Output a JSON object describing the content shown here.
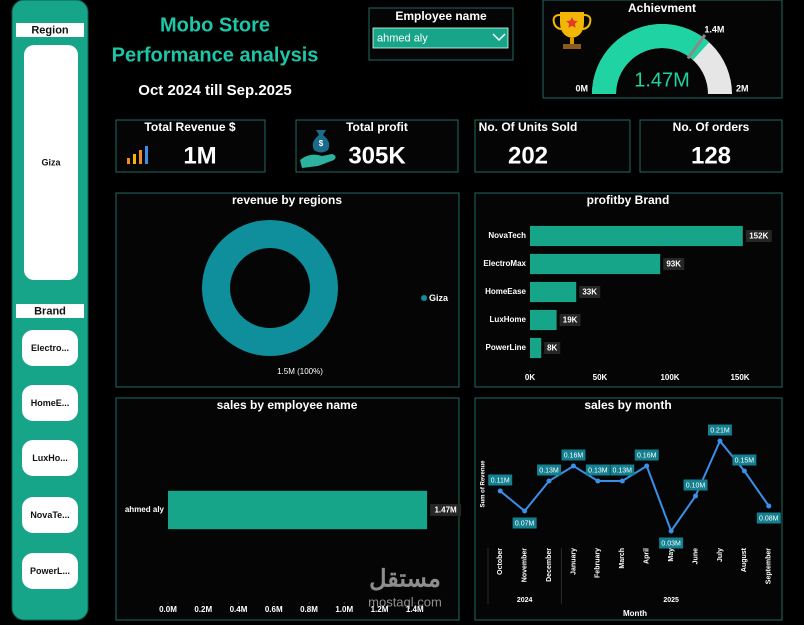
{
  "header": {
    "title": "Mobo Store",
    "subtitle": "Performance analysis",
    "period": "Oct 2024 till Sep.2025"
  },
  "sidebar": {
    "region_title": "Region",
    "region_items": [
      "Giza"
    ],
    "brand_title": "Brand",
    "brand_items": [
      "Electro...",
      "HomeE...",
      "LuxHo...",
      "NovaTe...",
      "PowerL..."
    ]
  },
  "employee_filter": {
    "label": "Employee name",
    "selected": "ahmed aly"
  },
  "kpis": [
    {
      "label": "Total Revenue $",
      "value": "1M"
    },
    {
      "label": "Total profit",
      "value": "305K"
    },
    {
      "label": "No. Of Units Sold",
      "value": 202
    },
    {
      "label": "No. Of orders",
      "value": 128
    }
  ],
  "chart_data": [
    {
      "type": "gauge",
      "title": "Achievment",
      "value": 1470000,
      "value_label": "1.47M",
      "target": 1400000,
      "target_label": "1.4M",
      "ylim": [
        0,
        2000000
      ],
      "yticks": [
        {
          "value": 0,
          "label": "0M"
        },
        {
          "value": 2000000,
          "label": "2M"
        }
      ],
      "color": "#1fd3a2",
      "track_color": "#e6e6e6"
    },
    {
      "type": "pie",
      "title": "revenue by regions",
      "categories": [
        "Giza"
      ],
      "values": [
        1500000
      ],
      "value_labels": [
        "1.5M (100%)"
      ],
      "colors": [
        "#0f8e9c"
      ],
      "hole": true,
      "legend": "right"
    },
    {
      "type": "bar",
      "orientation": "horizontal",
      "title": "profitby Brand",
      "categories": [
        "NovaTech",
        "ElectroMax",
        "HomeEase",
        "LuxHome",
        "PowerLine"
      ],
      "values": [
        152000,
        93000,
        33000,
        19000,
        8000
      ],
      "value_labels": [
        "152K",
        "93K",
        "33K",
        "19K",
        "8K"
      ],
      "color": "#17a589",
      "xlim": [
        0,
        155000
      ],
      "xticks": [
        {
          "value": 0,
          "label": "0K"
        },
        {
          "value": 50000,
          "label": "50K"
        },
        {
          "value": 100000,
          "label": "100K"
        },
        {
          "value": 150000,
          "label": "150K"
        }
      ]
    },
    {
      "type": "bar",
      "orientation": "horizontal",
      "title": "sales by employee name",
      "categories": [
        "ahmed aly"
      ],
      "values": [
        1470000
      ],
      "value_labels": [
        "1.47M"
      ],
      "color": "#17a589",
      "xlim": [
        0,
        1600000
      ],
      "xticks": [
        {
          "value": 0,
          "label": "0.0M"
        },
        {
          "value": 200000,
          "label": "0.2M"
        },
        {
          "value": 400000,
          "label": "0.4M"
        },
        {
          "value": 600000,
          "label": "0.6M"
        },
        {
          "value": 800000,
          "label": "0.8M"
        },
        {
          "value": 1000000,
          "label": "1.0M"
        },
        {
          "value": 1200000,
          "label": "1.2M"
        },
        {
          "value": 1400000,
          "label": "1.4M"
        }
      ]
    },
    {
      "type": "line",
      "title": "sales by month",
      "xlabel": "Month",
      "ylabel": "Sum of Revenue",
      "categories": [
        "October",
        "November",
        "December",
        "January",
        "February",
        "March",
        "April",
        "May",
        "June",
        "July",
        "August",
        "September"
      ],
      "year_labels": [
        "2024",
        "2025"
      ],
      "values": [
        110000,
        70000,
        130000,
        160000,
        130000,
        130000,
        160000,
        30000,
        100000,
        210000,
        150000,
        80000
      ],
      "value_labels": [
        "0.11M",
        "0.07M",
        "0.13M",
        "0.16M",
        "0.13M",
        "0.13M",
        "0.16M",
        "0.03M",
        "0.10M",
        "0.21M",
        "0.15M",
        "0.08M"
      ],
      "color": "#3a8fe8",
      "ylim": [
        0,
        230000
      ]
    }
  ],
  "watermark": {
    "arabic": "مستقل",
    "latin": "mostaql.com"
  }
}
